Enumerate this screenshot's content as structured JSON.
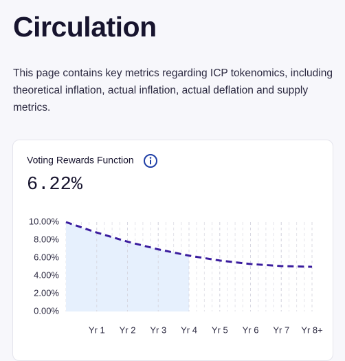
{
  "header": {
    "title": "Circulation",
    "description": "This page contains key metrics regarding ICP tokenomics, including theoretical inflation, actual inflation, actual deflation and supply metrics."
  },
  "chart_data": {
    "type": "line",
    "title": "Voting Rewards Function",
    "current_value": "6.22%",
    "x": [
      0,
      1,
      2,
      3,
      4,
      5,
      6,
      7,
      8
    ],
    "series": [
      {
        "color": "#3a1c9e",
        "values": [
          10,
          8.83,
          7.81,
          6.95,
          6.25,
          5.7,
          5.31,
          5.08,
          5
        ]
      }
    ],
    "filled_until_x": 4,
    "fill_color": "#e6f0fd",
    "xlim": [
      0,
      8
    ],
    "xticks": [
      {
        "value": 1,
        "label": "Yr 1"
      },
      {
        "value": 2,
        "label": "Yr 2"
      },
      {
        "value": 3,
        "label": "Yr 3"
      },
      {
        "value": 4,
        "label": "Yr 4"
      },
      {
        "value": 5,
        "label": "Yr 5"
      },
      {
        "value": 6,
        "label": "Yr 6"
      },
      {
        "value": 7,
        "label": "Yr 7"
      },
      {
        "value": 8,
        "label": "Yr 8+"
      }
    ],
    "ylim": [
      0,
      10
    ],
    "yticks": [
      {
        "value": 0,
        "label": "0.00%"
      },
      {
        "value": 2,
        "label": "2.00%"
      },
      {
        "value": 4,
        "label": "4.00%"
      },
      {
        "value": 6,
        "label": "6.00%"
      },
      {
        "value": 8,
        "label": "8.00%"
      },
      {
        "value": 10,
        "label": "10.00%"
      }
    ],
    "grid": true
  }
}
